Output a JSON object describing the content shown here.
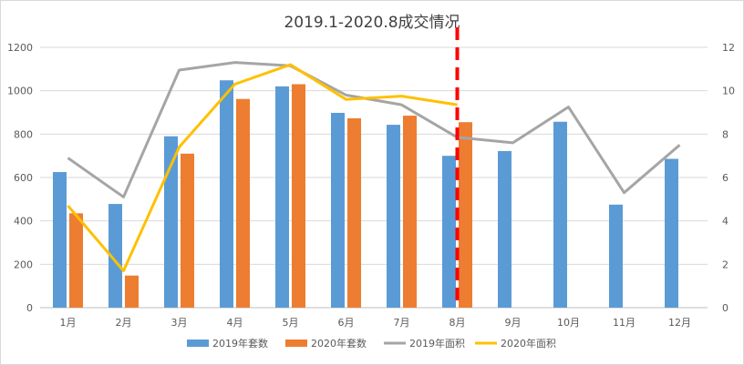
{
  "chart_data": {
    "type": "bar",
    "title": "2019.1-2020.8成交情况",
    "categories": [
      "1月",
      "2月",
      "3月",
      "4月",
      "5月",
      "6月",
      "7月",
      "8月",
      "9月",
      "10月",
      "11月",
      "12月"
    ],
    "y_left": {
      "ylim": [
        0,
        1200
      ],
      "ticks": [
        0,
        200,
        400,
        600,
        800,
        1000,
        1200
      ]
    },
    "y_right": {
      "ylim": [
        0,
        12
      ],
      "ticks": [
        0,
        2,
        4,
        6,
        8,
        10,
        12
      ]
    },
    "series": [
      {
        "name": "2019年套数",
        "type": "bar",
        "axis": "left",
        "color": "#5B9BD5",
        "values": [
          625,
          478,
          790,
          1048,
          1020,
          898,
          843,
          700,
          722,
          857,
          475,
          686
        ]
      },
      {
        "name": "2020年套数",
        "type": "bar",
        "axis": "left",
        "color": "#ED7D31",
        "values": [
          435,
          148,
          710,
          962,
          1030,
          873,
          885,
          855,
          null,
          null,
          null,
          null
        ]
      },
      {
        "name": "2019年面积",
        "type": "line",
        "axis": "right",
        "color": "#A5A5A5",
        "values": [
          6.9,
          5.1,
          10.95,
          11.3,
          11.15,
          9.8,
          9.35,
          7.85,
          7.6,
          9.25,
          5.3,
          7.5
        ]
      },
      {
        "name": "2020年面积",
        "type": "line",
        "axis": "right",
        "color": "#FFC000",
        "values": [
          4.7,
          1.7,
          7.4,
          10.3,
          11.2,
          9.6,
          9.75,
          9.35,
          null,
          null,
          null,
          null
        ]
      }
    ],
    "marker_line": {
      "category": "8月",
      "color": "#FF0000",
      "style": "dashed"
    },
    "grid": true,
    "legend_position": "bottom"
  }
}
